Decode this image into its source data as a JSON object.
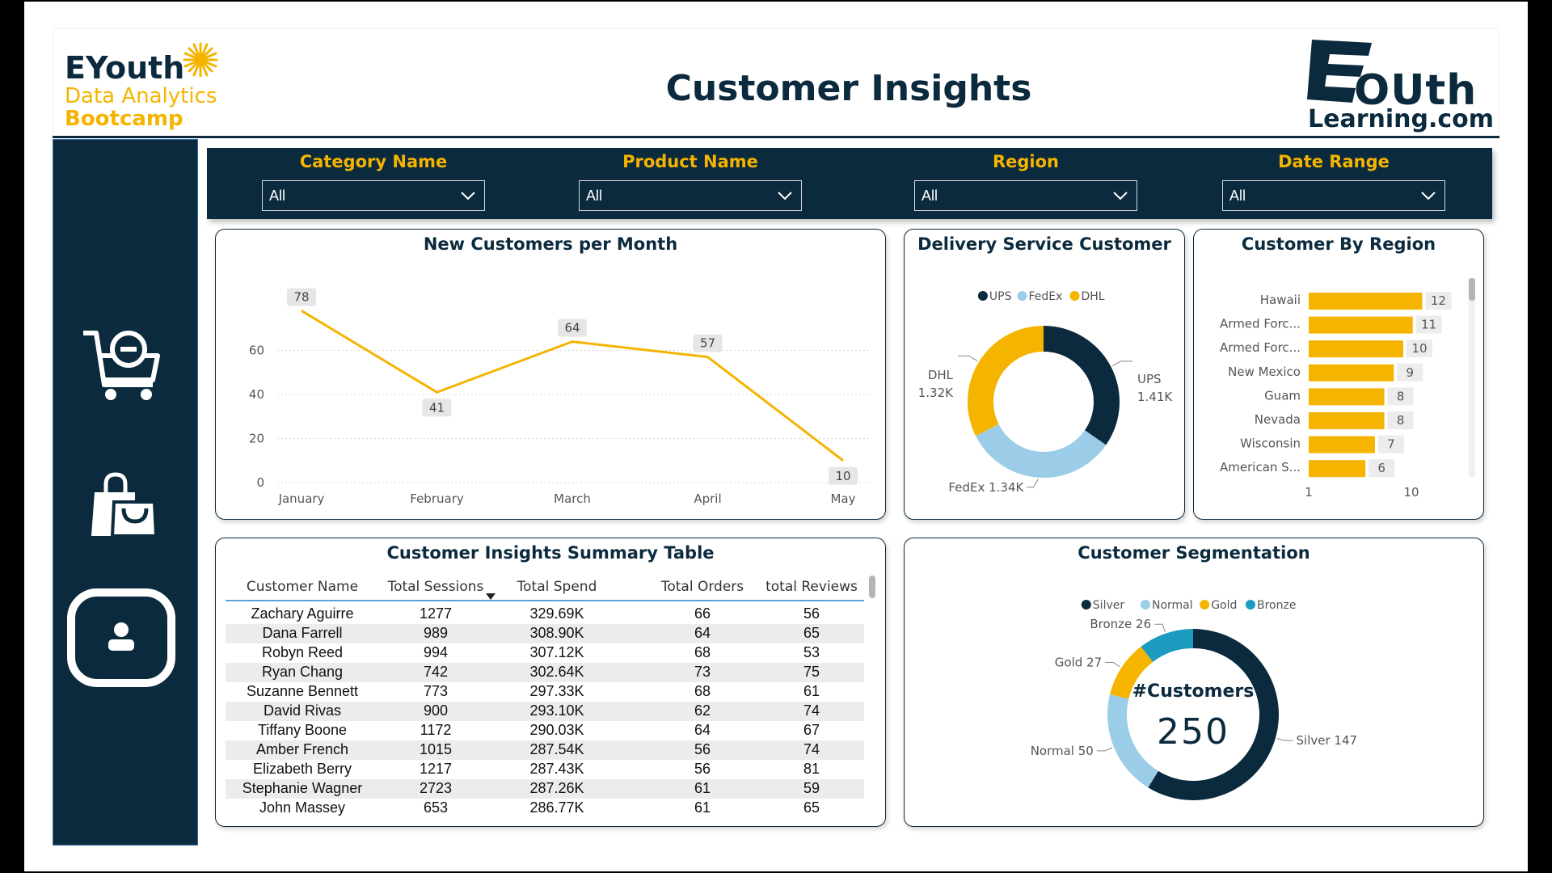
{
  "header": {
    "brand_name": "EYouth",
    "brand_line1": "Data Analytics",
    "brand_line2": "Bootcamp",
    "title": "Customer Insights",
    "right_logo_word": "OUth",
    "right_logo_sub": "Learning.com"
  },
  "colors": {
    "navy": "#0b2a3d",
    "gold": "#f4b400",
    "lightblue": "#9ccde8",
    "teal": "#1a9bbf"
  },
  "sidebar": {
    "items": [
      {
        "icon": "cart-icon"
      },
      {
        "icon": "shopping-bag-icon"
      },
      {
        "icon": "user-icon",
        "active": true
      }
    ]
  },
  "filters": [
    {
      "label": "Category Name",
      "value": "All"
    },
    {
      "label": "Product Name",
      "value": "All"
    },
    {
      "label": "Region",
      "value": "All"
    },
    {
      "label": "Date Range",
      "value": "All"
    }
  ],
  "chart_data": [
    {
      "type": "line",
      "title": "New Customers per Month",
      "categories": [
        "January",
        "February",
        "March",
        "April",
        "May"
      ],
      "values": [
        78,
        41,
        64,
        57,
        10
      ],
      "yticks": [
        0,
        20,
        40,
        60
      ],
      "ylim": [
        0,
        80
      ],
      "grid": true
    },
    {
      "type": "pie",
      "title": "Delivery Service Customer",
      "legend": [
        "UPS",
        "FedEx",
        "DHL"
      ],
      "slices": [
        {
          "name": "UPS",
          "value": 1.41,
          "label": "1.41K"
        },
        {
          "name": "FedEx",
          "value": 1.34,
          "label": "1.34K"
        },
        {
          "name": "DHL",
          "value": 1.32,
          "label": "1.32K"
        }
      ]
    },
    {
      "type": "bar",
      "title": "Customer By Region",
      "categories": [
        "Hawaii",
        "Armed Forc...",
        "Armed Forc...",
        "New Mexico",
        "Guam",
        "Nevada",
        "Wisconsin",
        "American S..."
      ],
      "values": [
        12,
        11,
        10,
        9,
        8,
        8,
        7,
        6
      ],
      "xticks": [
        1,
        10
      ],
      "xlim": [
        0,
        14
      ]
    },
    {
      "type": "pie",
      "title": "Customer Segmentation",
      "legend": [
        "Silver",
        "Normal",
        "Gold",
        "Bronze"
      ],
      "slices": [
        {
          "name": "Silver",
          "value": 147
        },
        {
          "name": "Normal",
          "value": 50
        },
        {
          "name": "Gold",
          "value": 27
        },
        {
          "name": "Bronze",
          "value": 26
        }
      ],
      "center_label": "#Customers",
      "center_value": "250"
    }
  ],
  "table": {
    "title": "Customer Insights Summary Table",
    "columns": [
      "Customer Name",
      "Total Sessions",
      "Total Spend",
      "Total Orders",
      "total Reviews"
    ],
    "rows": [
      [
        "Zachary Aguirre",
        "1277",
        "329.69K",
        "66",
        "56"
      ],
      [
        "Dana Farrell",
        "989",
        "308.90K",
        "64",
        "65"
      ],
      [
        "Robyn Reed",
        "994",
        "307.12K",
        "68",
        "53"
      ],
      [
        "Ryan Chang",
        "742",
        "302.64K",
        "73",
        "75"
      ],
      [
        "Suzanne Bennett",
        "773",
        "297.33K",
        "68",
        "61"
      ],
      [
        "David Rivas",
        "900",
        "293.10K",
        "62",
        "74"
      ],
      [
        "Tiffany Boone",
        "1172",
        "290.03K",
        "64",
        "67"
      ],
      [
        "Amber French",
        "1015",
        "287.54K",
        "56",
        "74"
      ],
      [
        "Elizabeth Berry",
        "1217",
        "287.43K",
        "56",
        "81"
      ],
      [
        "Stephanie Wagner",
        "2723",
        "287.26K",
        "61",
        "59"
      ],
      [
        "John Massey",
        "653",
        "286.77K",
        "61",
        "65"
      ]
    ]
  }
}
